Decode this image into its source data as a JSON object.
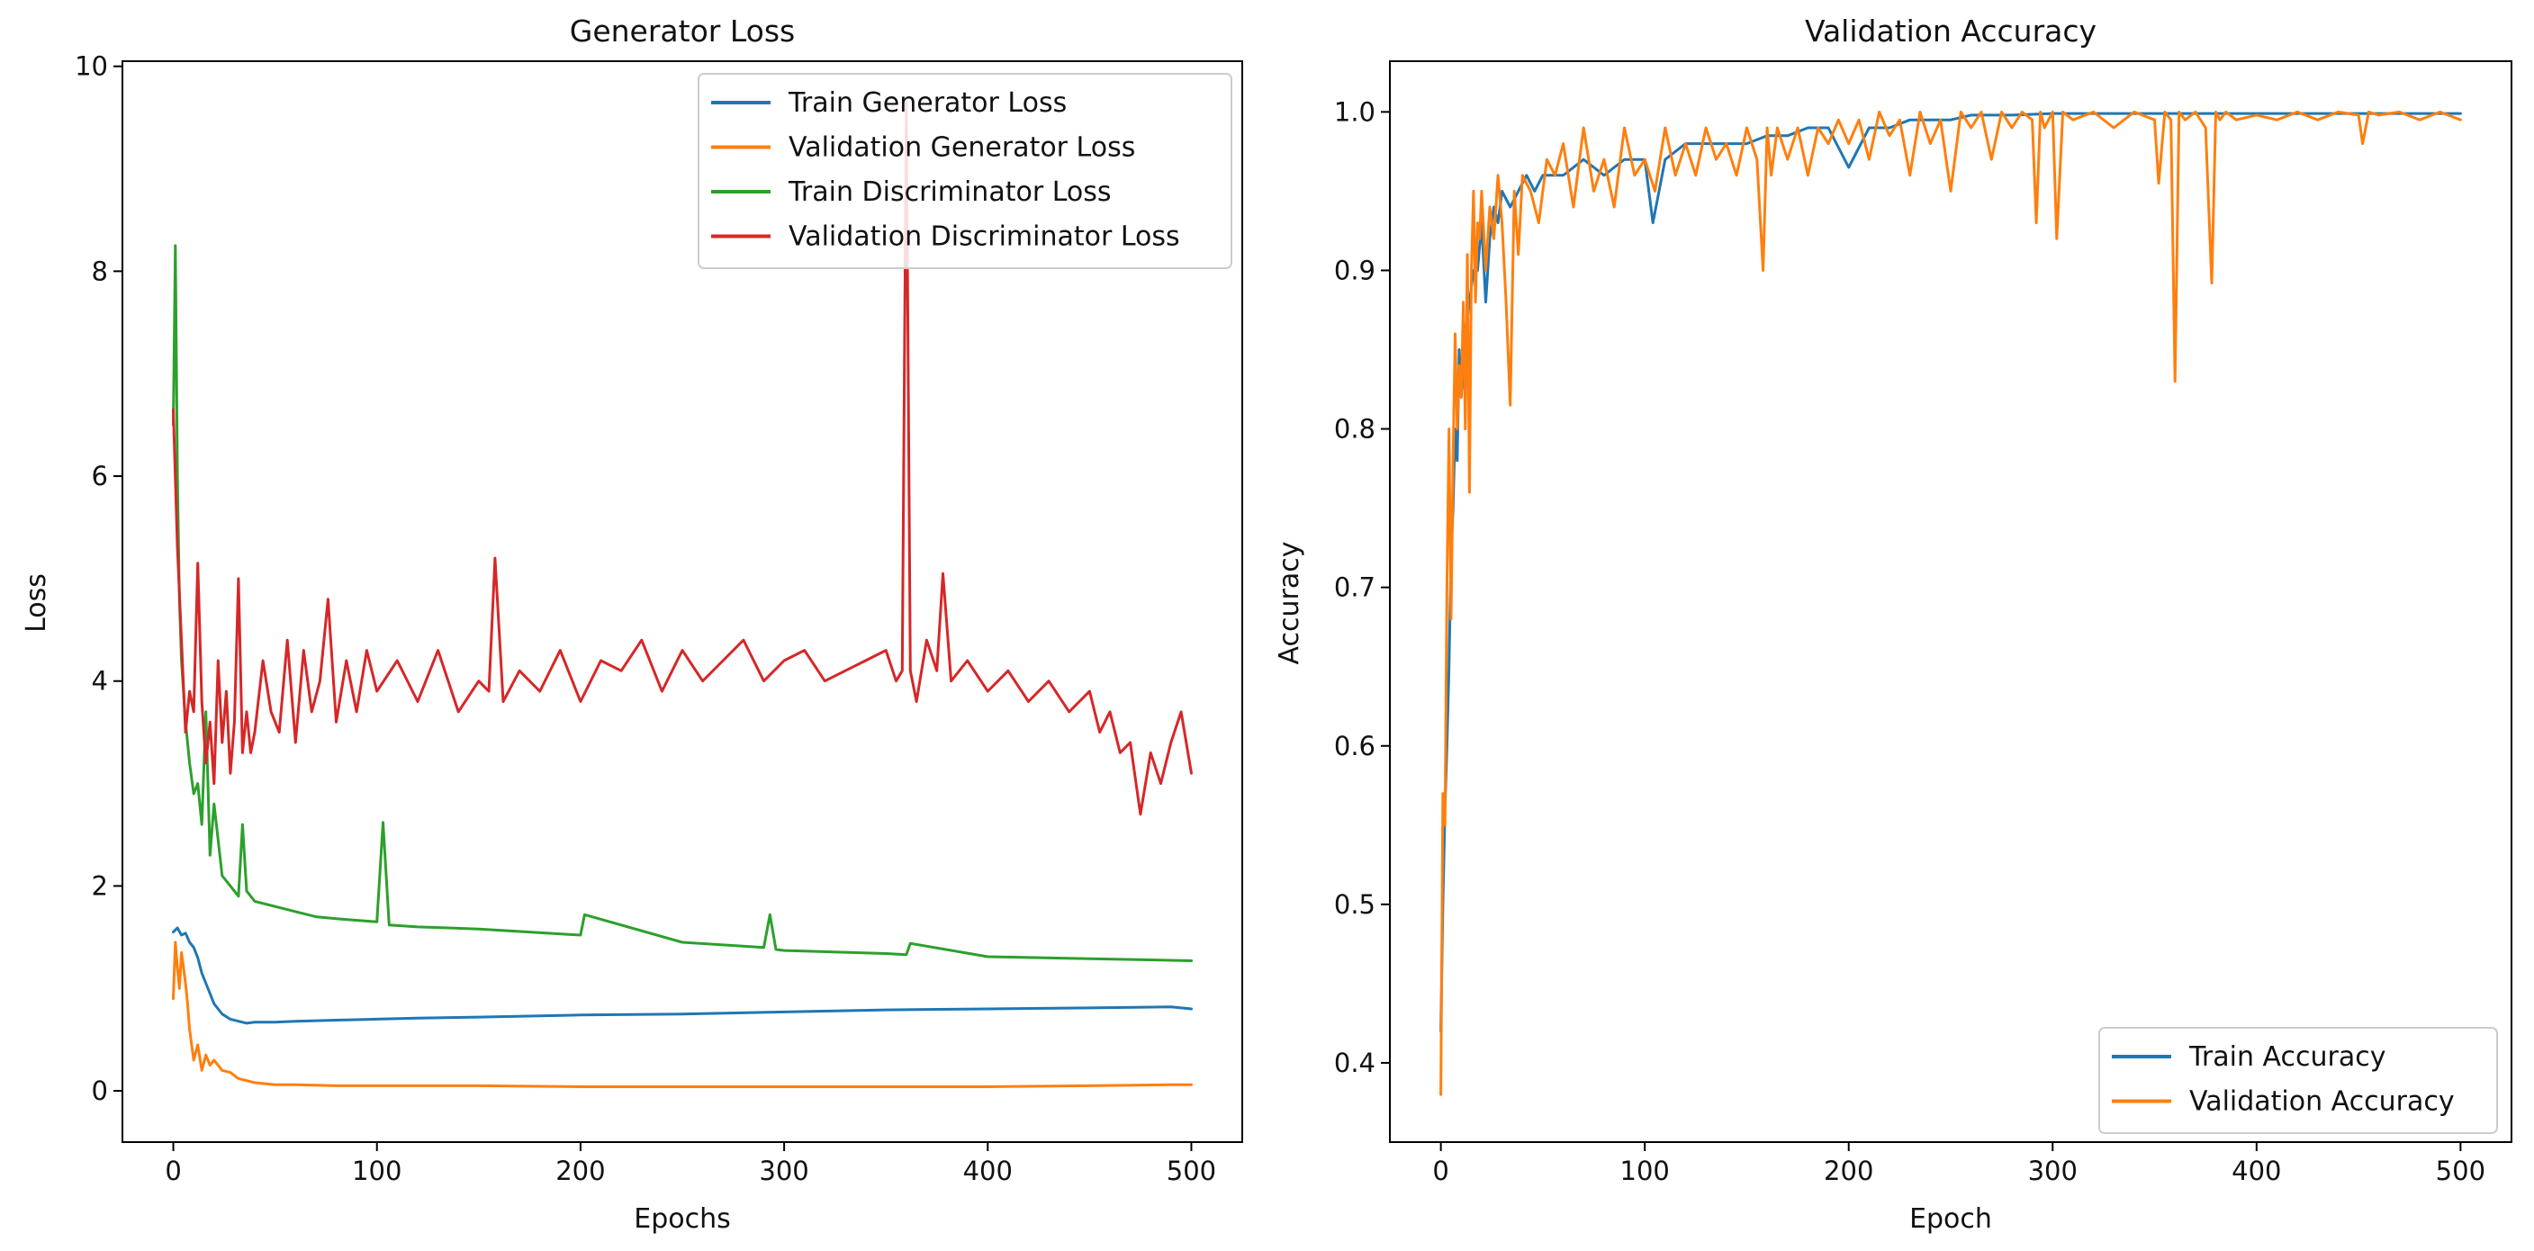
{
  "colors": {
    "blue": "#1f77b4",
    "orange": "#ff7f0e",
    "green": "#2ca02c",
    "red": "#d62728"
  },
  "chart_data": [
    {
      "type": "line",
      "title": "Generator Loss",
      "xlabel": "Epochs",
      "ylabel": "Loss",
      "xlim": [
        -25,
        525
      ],
      "ylim": [
        -0.5,
        10.05
      ],
      "xticks": [
        0,
        100,
        200,
        300,
        400,
        500
      ],
      "yticks": [
        0,
        2,
        4,
        6,
        8,
        10
      ],
      "grid": false,
      "legend_position": "top-right",
      "series": [
        {
          "name": "Train Generator Loss",
          "color": "#1f77b4",
          "x": [
            0,
            2,
            4,
            6,
            8,
            10,
            12,
            14,
            16,
            18,
            20,
            24,
            28,
            32,
            36,
            40,
            50,
            60,
            80,
            100,
            120,
            150,
            200,
            250,
            300,
            350,
            400,
            450,
            490,
            500
          ],
          "y": [
            1.55,
            1.59,
            1.52,
            1.54,
            1.45,
            1.4,
            1.3,
            1.15,
            1.05,
            0.95,
            0.85,
            0.75,
            0.7,
            0.68,
            0.66,
            0.67,
            0.67,
            0.68,
            0.69,
            0.7,
            0.71,
            0.72,
            0.74,
            0.75,
            0.77,
            0.79,
            0.8,
            0.81,
            0.82,
            0.8
          ]
        },
        {
          "name": "Validation Generator Loss",
          "color": "#ff7f0e",
          "x": [
            0,
            1,
            2,
            3,
            4,
            5,
            6,
            7,
            8,
            9,
            10,
            12,
            14,
            16,
            18,
            20,
            24,
            28,
            32,
            36,
            40,
            50,
            60,
            80,
            100,
            150,
            200,
            250,
            300,
            350,
            400,
            450,
            490,
            500
          ],
          "y": [
            0.9,
            1.45,
            1.2,
            1.0,
            1.35,
            1.2,
            1.05,
            0.85,
            0.6,
            0.45,
            0.3,
            0.45,
            0.2,
            0.35,
            0.25,
            0.3,
            0.2,
            0.18,
            0.12,
            0.1,
            0.08,
            0.06,
            0.06,
            0.05,
            0.05,
            0.05,
            0.04,
            0.04,
            0.04,
            0.04,
            0.04,
            0.05,
            0.06,
            0.06
          ]
        },
        {
          "name": "Train Discriminator Loss",
          "color": "#2ca02c",
          "x": [
            0,
            1,
            2,
            3,
            4,
            6,
            8,
            10,
            12,
            14,
            16,
            18,
            20,
            24,
            28,
            32,
            34,
            36,
            40,
            50,
            60,
            70,
            80,
            100,
            103,
            106,
            120,
            150,
            200,
            202,
            250,
            290,
            293,
            296,
            300,
            350,
            360,
            362,
            400,
            450,
            500
          ],
          "y": [
            6.5,
            8.25,
            6.0,
            4.8,
            4.2,
            3.6,
            3.2,
            2.9,
            3.0,
            2.6,
            3.7,
            2.3,
            2.8,
            2.1,
            2.0,
            1.9,
            2.6,
            1.95,
            1.85,
            1.8,
            1.75,
            1.7,
            1.68,
            1.65,
            2.62,
            1.62,
            1.6,
            1.58,
            1.52,
            1.72,
            1.45,
            1.4,
            1.72,
            1.38,
            1.37,
            1.34,
            1.33,
            1.44,
            1.31,
            1.29,
            1.27
          ]
        },
        {
          "name": "Validation Discriminator Loss",
          "color": "#d62728",
          "x": [
            0,
            2,
            4,
            6,
            8,
            10,
            12,
            14,
            16,
            18,
            20,
            22,
            24,
            26,
            28,
            30,
            32,
            34,
            36,
            38,
            40,
            44,
            48,
            52,
            56,
            60,
            64,
            68,
            72,
            76,
            80,
            85,
            90,
            95,
            100,
            110,
            120,
            130,
            140,
            150,
            155,
            158,
            162,
            170,
            180,
            190,
            200,
            210,
            220,
            230,
            240,
            250,
            260,
            270,
            280,
            290,
            300,
            310,
            320,
            330,
            340,
            350,
            355,
            358,
            360,
            362,
            365,
            370,
            375,
            378,
            382,
            390,
            400,
            410,
            420,
            430,
            440,
            450,
            455,
            460,
            465,
            470,
            475,
            480,
            485,
            490,
            495,
            500
          ],
          "y": [
            6.65,
            5.3,
            4.4,
            3.5,
            3.9,
            3.7,
            5.15,
            3.8,
            3.2,
            3.6,
            3.0,
            4.2,
            3.4,
            3.9,
            3.1,
            3.6,
            5.0,
            3.3,
            3.7,
            3.3,
            3.5,
            4.2,
            3.7,
            3.5,
            4.4,
            3.4,
            4.3,
            3.7,
            4.0,
            4.8,
            3.6,
            4.2,
            3.7,
            4.3,
            3.9,
            4.2,
            3.8,
            4.3,
            3.7,
            4.0,
            3.9,
            5.2,
            3.8,
            4.1,
            3.9,
            4.3,
            3.8,
            4.2,
            4.1,
            4.4,
            3.9,
            4.3,
            4.0,
            4.2,
            4.4,
            4.0,
            4.2,
            4.3,
            4.0,
            4.1,
            4.2,
            4.3,
            4.0,
            4.1,
            9.65,
            4.1,
            3.8,
            4.4,
            4.1,
            5.05,
            4.0,
            4.2,
            3.9,
            4.1,
            3.8,
            4.0,
            3.7,
            3.9,
            3.5,
            3.7,
            3.3,
            3.4,
            2.7,
            3.3,
            3.0,
            3.4,
            3.7,
            3.1
          ]
        }
      ]
    },
    {
      "type": "line",
      "title": "Validation Accuracy",
      "xlabel": "Epoch",
      "ylabel": "Accuracy",
      "xlim": [
        -25,
        525
      ],
      "ylim": [
        0.35,
        1.032
      ],
      "xticks": [
        0,
        100,
        200,
        300,
        400,
        500
      ],
      "yticks": [
        0.4,
        0.5,
        0.6,
        0.7,
        0.8,
        0.9,
        1.0
      ],
      "grid": false,
      "legend_position": "bottom-right",
      "series": [
        {
          "name": "Train Accuracy",
          "color": "#1f77b4",
          "x": [
            0,
            1,
            2,
            3,
            4,
            5,
            6,
            7,
            8,
            9,
            10,
            12,
            14,
            16,
            18,
            20,
            22,
            24,
            26,
            28,
            30,
            34,
            38,
            42,
            46,
            50,
            60,
            70,
            80,
            90,
            100,
            104,
            110,
            120,
            130,
            140,
            150,
            160,
            170,
            180,
            190,
            200,
            210,
            220,
            230,
            240,
            250,
            260,
            270,
            280,
            300,
            350,
            400,
            450,
            500
          ],
          "y": [
            0.42,
            0.5,
            0.56,
            0.6,
            0.65,
            0.72,
            0.75,
            0.8,
            0.78,
            0.85,
            0.82,
            0.86,
            0.88,
            0.9,
            0.9,
            0.93,
            0.88,
            0.92,
            0.94,
            0.93,
            0.95,
            0.94,
            0.95,
            0.96,
            0.95,
            0.96,
            0.96,
            0.97,
            0.96,
            0.97,
            0.97,
            0.93,
            0.97,
            0.98,
            0.98,
            0.98,
            0.98,
            0.985,
            0.985,
            0.99,
            0.99,
            0.965,
            0.99,
            0.99,
            0.995,
            0.995,
            0.995,
            0.998,
            0.998,
            0.998,
            0.999,
            0.999,
            0.999,
            0.999,
            0.999
          ]
        },
        {
          "name": "Validation Accuracy",
          "color": "#ff7f0e",
          "x": [
            0,
            1,
            2,
            3,
            4,
            5,
            6,
            7,
            8,
            9,
            10,
            11,
            12,
            13,
            14,
            15,
            16,
            17,
            18,
            19,
            20,
            22,
            24,
            26,
            28,
            30,
            32,
            34,
            36,
            38,
            40,
            44,
            48,
            52,
            56,
            60,
            65,
            70,
            75,
            80,
            85,
            90,
            95,
            100,
            105,
            110,
            115,
            120,
            125,
            130,
            135,
            140,
            145,
            150,
            155,
            158,
            160,
            162,
            165,
            170,
            175,
            180,
            185,
            190,
            195,
            200,
            205,
            210,
            215,
            220,
            225,
            230,
            235,
            240,
            245,
            250,
            255,
            260,
            265,
            270,
            275,
            280,
            285,
            290,
            292,
            294,
            296,
            300,
            302,
            305,
            310,
            320,
            330,
            340,
            350,
            352,
            355,
            358,
            360,
            362,
            365,
            370,
            375,
            378,
            380,
            382,
            385,
            390,
            400,
            410,
            420,
            430,
            440,
            450,
            452,
            455,
            460,
            470,
            480,
            490,
            500
          ],
          "y": [
            0.38,
            0.57,
            0.55,
            0.7,
            0.8,
            0.68,
            0.78,
            0.86,
            0.8,
            0.84,
            0.82,
            0.88,
            0.8,
            0.91,
            0.76,
            0.9,
            0.95,
            0.88,
            0.93,
            0.92,
            0.95,
            0.9,
            0.94,
            0.92,
            0.96,
            0.93,
            0.88,
            0.815,
            0.95,
            0.91,
            0.96,
            0.95,
            0.93,
            0.97,
            0.96,
            0.98,
            0.94,
            0.99,
            0.95,
            0.97,
            0.94,
            0.99,
            0.96,
            0.97,
            0.95,
            0.99,
            0.96,
            0.98,
            0.96,
            0.99,
            0.97,
            0.98,
            0.96,
            0.99,
            0.97,
            0.9,
            0.99,
            0.96,
            0.99,
            0.97,
            0.99,
            0.96,
            0.99,
            0.98,
            0.995,
            0.98,
            0.995,
            0.97,
            1.0,
            0.985,
            0.995,
            0.96,
            1.0,
            0.98,
            0.995,
            0.95,
            1.0,
            0.99,
            1.0,
            0.97,
            1.0,
            0.99,
            1.0,
            0.995,
            0.93,
            1.0,
            0.99,
            1.0,
            0.92,
            1.0,
            0.995,
            1.0,
            0.99,
            1.0,
            0.995,
            0.955,
            1.0,
            0.995,
            0.83,
            1.0,
            0.995,
            1.0,
            0.99,
            0.892,
            1.0,
            0.995,
            1.0,
            0.995,
            0.998,
            0.995,
            1.0,
            0.995,
            1.0,
            0.998,
            0.98,
            1.0,
            0.998,
            1.0,
            0.995,
            1.0,
            0.995
          ]
        }
      ]
    }
  ]
}
